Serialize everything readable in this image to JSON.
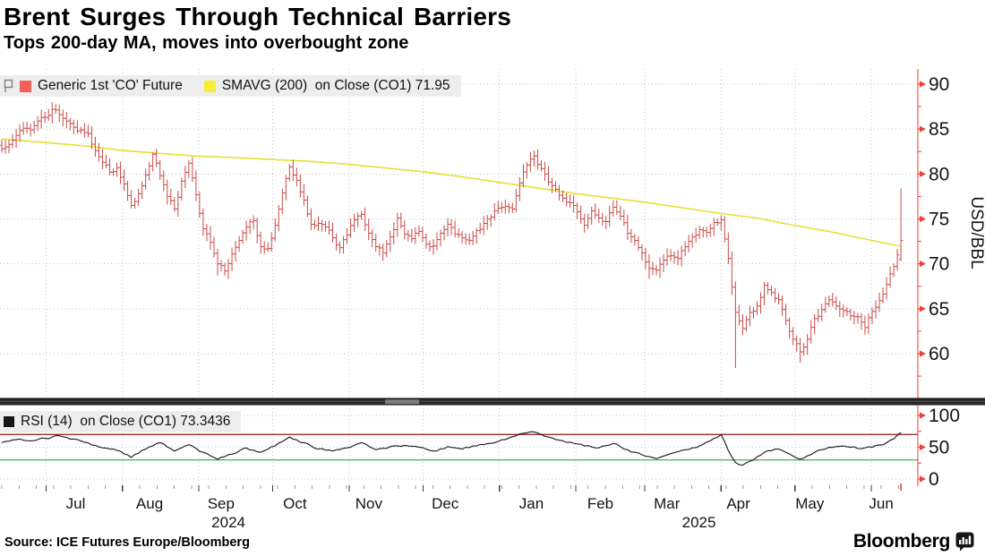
{
  "header": {
    "title": "Brent Surges Through Technical Barriers",
    "subtitle": "Tops 200-day MA, moves into overbought zone"
  },
  "legend_main": {
    "series": [
      {
        "label": "Generic 1st 'CO' Future",
        "swatch": "#f4615b"
      },
      {
        "label": "SMAVG (200)  on Close (CO1) 71.95",
        "swatch": "#f6ee33"
      }
    ]
  },
  "legend_rsi": {
    "label": "RSI (14)  on Close (CO1) 73.3436",
    "swatch": "#161616"
  },
  "footer": {
    "source": "Source: ICE Futures Europe/Bloomberg",
    "brand": "Bloomberg"
  },
  "chart_data": {
    "type": "ohlc",
    "title": "Brent Surges Through Technical Barriers",
    "ylabel": "USD/BBL",
    "ylim": [
      55.5,
      91.5
    ],
    "y_ticks": [
      90,
      85,
      80,
      75,
      70,
      65,
      60
    ],
    "y_minor_ticks": [
      87.5,
      82.5,
      77.5,
      72.5,
      67.5,
      62.5,
      57.5
    ],
    "x_months": [
      "Jul",
      "Aug",
      "Sep",
      "Oct",
      "Nov",
      "Dec",
      "Jan",
      "Feb",
      "Mar",
      "Apr",
      "May",
      "Jun"
    ],
    "month_start_days": [
      18,
      49,
      80,
      110,
      141,
      171,
      202,
      233,
      261,
      292,
      322,
      353
    ],
    "month_label_days": [
      30,
      60,
      89,
      119,
      149,
      180,
      215,
      243,
      270,
      299,
      328,
      357
    ],
    "x_years": [
      {
        "label": "2024",
        "day": 92
      },
      {
        "label": "2025",
        "day": 283
      }
    ],
    "total_days": 365,
    "axis_color": "#e8423a",
    "grid_color": "#c6c6c6",
    "price": {
      "name": "Generic 1st 'CO' Future",
      "color": "#c84b46",
      "closes": [
        82.8,
        83.3,
        84.3,
        85.1,
        84.9,
        85.9,
        86.3,
        87.2,
        86.6,
        85.9,
        85.2,
        84.9,
        84.5,
        82.6,
        81.3,
        80.2,
        80.7,
        78.9,
        76.5,
        77.8,
        79.9,
        82.2,
        79.8,
        77.5,
        76.1,
        79.2,
        81.2,
        77.7,
        73.9,
        72.4,
        70.0,
        69.2,
        71.1,
        72.6,
        74.1,
        74.8,
        71.9,
        71.7,
        74.3,
        77.9,
        80.8,
        79.3,
        77.1,
        74.4,
        74.5,
        74.1,
        72.9,
        71.8,
        73.2,
        74.9,
        75.5,
        73.4,
        71.9,
        71.2,
        73.0,
        75.1,
        73.3,
        72.8,
        73.6,
        72.2,
        72.0,
        73.4,
        74.4,
        73.3,
        72.9,
        72.6,
        73.7,
        74.5,
        75.2,
        76.2,
        76.4,
        76.1,
        79.0,
        81.0,
        82.0,
        80.6,
        79.1,
        78.3,
        77.3,
        76.8,
        75.8,
        74.3,
        75.9,
        75.1,
        74.7,
        76.3,
        75.3,
        73.4,
        72.6,
        71.2,
        69.5,
        69.3,
        70.4,
        70.9,
        70.6,
        71.9,
        73.0,
        73.8,
        73.5,
        74.6,
        74.9,
        70.6,
        64.6,
        62.8,
        64.6,
        65.3,
        67.6,
        66.8,
        66.0,
        63.7,
        61.6,
        60.2,
        61.6,
        63.9,
        64.9,
        66.0,
        65.3,
        64.8,
        64.2,
        64.1,
        62.9,
        64.7,
        65.9,
        67.7,
        69.7,
        72.6
      ],
      "extremes": {
        "7": {
          "high": 88.0
        },
        "21": {
          "high": 82.4
        },
        "30": {
          "low": 68.7
        },
        "40": {
          "high": 81.1
        },
        "74": {
          "high": 82.6
        },
        "90": {
          "low": 68.3
        },
        "102": {
          "low": 58.4
        },
        "111": {
          "low": 59.0
        },
        "125": {
          "high": 78.4,
          "low": 70.3,
          "open": 70.5
        }
      }
    },
    "sma": {
      "name": "SMAVG (200) on Close (CO1)",
      "last": 71.95,
      "color": "#e7df36",
      "points": [
        [
          0,
          83.9
        ],
        [
          6,
          83.5
        ],
        [
          12,
          83.1
        ],
        [
          17,
          82.6
        ],
        [
          22,
          82.3
        ],
        [
          27,
          82.0
        ],
        [
          33,
          81.8
        ],
        [
          38,
          81.6
        ],
        [
          43,
          81.4
        ],
        [
          48,
          81.1
        ],
        [
          53,
          80.7
        ],
        [
          58,
          80.3
        ],
        [
          63,
          79.8
        ],
        [
          69,
          79.1
        ],
        [
          74,
          78.5
        ],
        [
          80,
          77.8
        ],
        [
          85,
          77.3
        ],
        [
          89,
          76.9
        ],
        [
          95,
          76.2
        ],
        [
          100,
          75.6
        ],
        [
          105,
          75.1
        ],
        [
          110,
          74.3
        ],
        [
          115,
          73.6
        ],
        [
          121,
          72.6
        ],
        [
          125,
          71.95
        ]
      ]
    },
    "rsi": {
      "name": "RSI (14) on Close (CO1)",
      "last": 73.3436,
      "color": "#1c1c1c",
      "ylim": [
        0,
        100
      ],
      "ticks": [
        100,
        50,
        0
      ],
      "minor_ticks": [
        75,
        25
      ],
      "upper": 70,
      "lower": 30,
      "upper_color": "#a12d27",
      "lower_color": "#5db75d",
      "points": [
        [
          0,
          57
        ],
        [
          2,
          62
        ],
        [
          4,
          60
        ],
        [
          6,
          64
        ],
        [
          8,
          68
        ],
        [
          10,
          63
        ],
        [
          12,
          57
        ],
        [
          14,
          49
        ],
        [
          16,
          45
        ],
        [
          18,
          34
        ],
        [
          20,
          47
        ],
        [
          22,
          57
        ],
        [
          24,
          44
        ],
        [
          26,
          54
        ],
        [
          28,
          42
        ],
        [
          30,
          31
        ],
        [
          32,
          39
        ],
        [
          34,
          49
        ],
        [
          36,
          42
        ],
        [
          38,
          52
        ],
        [
          40,
          66
        ],
        [
          42,
          57
        ],
        [
          44,
          47
        ],
        [
          46,
          44
        ],
        [
          48,
          49
        ],
        [
          50,
          57
        ],
        [
          52,
          46
        ],
        [
          54,
          51
        ],
        [
          56,
          53
        ],
        [
          58,
          50
        ],
        [
          60,
          44
        ],
        [
          62,
          51
        ],
        [
          64,
          47
        ],
        [
          66,
          52
        ],
        [
          68,
          56
        ],
        [
          70,
          62
        ],
        [
          72,
          71
        ],
        [
          74,
          74
        ],
        [
          75,
          70
        ],
        [
          77,
          62
        ],
        [
          79,
          58
        ],
        [
          81,
          52
        ],
        [
          83,
          49
        ],
        [
          85,
          56
        ],
        [
          87,
          46
        ],
        [
          89,
          38
        ],
        [
          91,
          32
        ],
        [
          93,
          40
        ],
        [
          95,
          46
        ],
        [
          97,
          52
        ],
        [
          99,
          64
        ],
        [
          100,
          70
        ],
        [
          101,
          45
        ],
        [
          102,
          26
        ],
        [
          103,
          22
        ],
        [
          104,
          28
        ],
        [
          106,
          42
        ],
        [
          108,
          47
        ],
        [
          109,
          42
        ],
        [
          110,
          36
        ],
        [
          111,
          31
        ],
        [
          113,
          42
        ],
        [
          115,
          50
        ],
        [
          117,
          52
        ],
        [
          119,
          48
        ],
        [
          121,
          50
        ],
        [
          123,
          57
        ],
        [
          124,
          63
        ],
        [
          125,
          73.3
        ]
      ]
    }
  }
}
